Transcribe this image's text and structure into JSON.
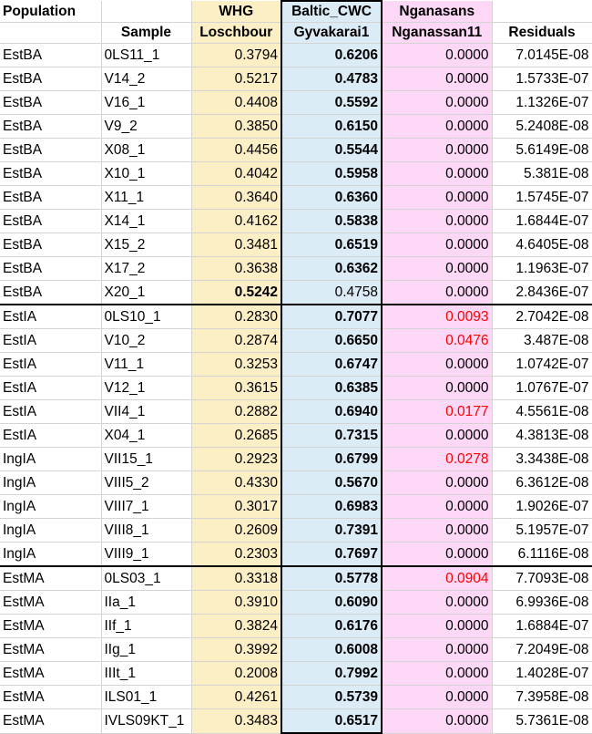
{
  "header": {
    "population": "Population",
    "sample": "Sample",
    "whg_line1": "WHG",
    "whg_line2": "Loschbour",
    "baltic_line1": "Baltic_CWC",
    "baltic_line2": "Gyvakarai1",
    "ngan_line1": "Nganasans",
    "ngan_line2": "Nganassan11",
    "residuals": "Residuals"
  },
  "rows": [
    {
      "pop": "EstBA",
      "sample": "0LS11_1",
      "whg": "0.3794",
      "baltic": "0.6206",
      "ngan": "0.0000",
      "res": "7.0145E-08",
      "bold": "baltic",
      "red": false,
      "group_start": false
    },
    {
      "pop": "EstBA",
      "sample": "V14_2",
      "whg": "0.5217",
      "baltic": "0.4783",
      "ngan": "0.0000",
      "res": "1.5733E-07",
      "bold": "baltic",
      "red": false,
      "group_start": false
    },
    {
      "pop": "EstBA",
      "sample": "V16_1",
      "whg": "0.4408",
      "baltic": "0.5592",
      "ngan": "0.0000",
      "res": "1.1326E-07",
      "bold": "baltic",
      "red": false,
      "group_start": false
    },
    {
      "pop": "EstBA",
      "sample": "V9_2",
      "whg": "0.3850",
      "baltic": "0.6150",
      "ngan": "0.0000",
      "res": "5.2408E-08",
      "bold": "baltic",
      "red": false,
      "group_start": false
    },
    {
      "pop": "EstBA",
      "sample": "X08_1",
      "whg": "0.4456",
      "baltic": "0.5544",
      "ngan": "0.0000",
      "res": "5.6149E-08",
      "bold": "baltic",
      "red": false,
      "group_start": false
    },
    {
      "pop": "EstBA",
      "sample": "X10_1",
      "whg": "0.4042",
      "baltic": "0.5958",
      "ngan": "0.0000",
      "res": "5.381E-08",
      "bold": "baltic",
      "red": false,
      "group_start": false
    },
    {
      "pop": "EstBA",
      "sample": "X11_1",
      "whg": "0.3640",
      "baltic": "0.6360",
      "ngan": "0.0000",
      "res": "1.5745E-07",
      "bold": "baltic",
      "red": false,
      "group_start": false
    },
    {
      "pop": "EstBA",
      "sample": "X14_1",
      "whg": "0.4162",
      "baltic": "0.5838",
      "ngan": "0.0000",
      "res": "1.6844E-07",
      "bold": "baltic",
      "red": false,
      "group_start": false
    },
    {
      "pop": "EstBA",
      "sample": "X15_2",
      "whg": "0.3481",
      "baltic": "0.6519",
      "ngan": "0.0000",
      "res": "4.6405E-08",
      "bold": "baltic",
      "red": false,
      "group_start": false
    },
    {
      "pop": "EstBA",
      "sample": "X17_2",
      "whg": "0.3638",
      "baltic": "0.6362",
      "ngan": "0.0000",
      "res": "1.1963E-07",
      "bold": "baltic",
      "red": false,
      "group_start": false
    },
    {
      "pop": "EstBA",
      "sample": "X20_1",
      "whg": "0.5242",
      "baltic": "0.4758",
      "ngan": "0.0000",
      "res": "2.8436E-07",
      "bold": "whg",
      "red": false,
      "group_start": false
    },
    {
      "pop": "EstIA",
      "sample": "0LS10_1",
      "whg": "0.2830",
      "baltic": "0.7077",
      "ngan": "0.0093",
      "res": "2.7042E-08",
      "bold": "baltic",
      "red": true,
      "group_start": true
    },
    {
      "pop": "EstIA",
      "sample": "V10_2",
      "whg": "0.2874",
      "baltic": "0.6650",
      "ngan": "0.0476",
      "res": "3.487E-08",
      "bold": "baltic",
      "red": true,
      "group_start": false
    },
    {
      "pop": "EstIA",
      "sample": "V11_1",
      "whg": "0.3253",
      "baltic": "0.6747",
      "ngan": "0.0000",
      "res": "1.0742E-07",
      "bold": "baltic",
      "red": false,
      "group_start": false
    },
    {
      "pop": "EstIA",
      "sample": "V12_1",
      "whg": "0.3615",
      "baltic": "0.6385",
      "ngan": "0.0000",
      "res": "1.0767E-07",
      "bold": "baltic",
      "red": false,
      "group_start": false
    },
    {
      "pop": "EstIA",
      "sample": "VII4_1",
      "whg": "0.2882",
      "baltic": "0.6940",
      "ngan": "0.0177",
      "res": "4.5561E-08",
      "bold": "baltic",
      "red": true,
      "group_start": false
    },
    {
      "pop": "EstIA",
      "sample": "X04_1",
      "whg": "0.2685",
      "baltic": "0.7315",
      "ngan": "0.0000",
      "res": "4.3813E-08",
      "bold": "baltic",
      "red": false,
      "group_start": false
    },
    {
      "pop": "IngIA",
      "sample": "VII15_1",
      "whg": "0.2923",
      "baltic": "0.6799",
      "ngan": "0.0278",
      "res": "3.3438E-08",
      "bold": "baltic",
      "red": true,
      "group_start": false
    },
    {
      "pop": "IngIA",
      "sample": "VIII5_2",
      "whg": "0.4330",
      "baltic": "0.5670",
      "ngan": "0.0000",
      "res": "6.3612E-08",
      "bold": "baltic",
      "red": false,
      "group_start": false
    },
    {
      "pop": "IngIA",
      "sample": "VIII7_1",
      "whg": "0.3017",
      "baltic": "0.6983",
      "ngan": "0.0000",
      "res": "1.9026E-07",
      "bold": "baltic",
      "red": false,
      "group_start": false
    },
    {
      "pop": "IngIA",
      "sample": "VIII8_1",
      "whg": "0.2609",
      "baltic": "0.7391",
      "ngan": "0.0000",
      "res": "5.1957E-07",
      "bold": "baltic",
      "red": false,
      "group_start": false
    },
    {
      "pop": "IngIA",
      "sample": "VIII9_1",
      "whg": "0.2303",
      "baltic": "0.7697",
      "ngan": "0.0000",
      "res": "6.1116E-08",
      "bold": "baltic",
      "red": false,
      "group_start": false
    },
    {
      "pop": "EstMA",
      "sample": "0LS03_1",
      "whg": "0.3318",
      "baltic": "0.5778",
      "ngan": "0.0904",
      "res": "7.7093E-08",
      "bold": "baltic",
      "red": true,
      "group_start": true
    },
    {
      "pop": "EstMA",
      "sample": "IIa_1",
      "whg": "0.3910",
      "baltic": "0.6090",
      "ngan": "0.0000",
      "res": "6.9936E-08",
      "bold": "baltic",
      "red": false,
      "group_start": false
    },
    {
      "pop": "EstMA",
      "sample": "IIf_1",
      "whg": "0.3824",
      "baltic": "0.6176",
      "ngan": "0.0000",
      "res": "1.6884E-07",
      "bold": "baltic",
      "red": false,
      "group_start": false
    },
    {
      "pop": "EstMA",
      "sample": "IIg_1",
      "whg": "0.3992",
      "baltic": "0.6008",
      "ngan": "0.0000",
      "res": "7.2049E-08",
      "bold": "baltic",
      "red": false,
      "group_start": false
    },
    {
      "pop": "EstMA",
      "sample": "IIIt_1",
      "whg": "0.2008",
      "baltic": "0.7992",
      "ngan": "0.0000",
      "res": "1.4028E-07",
      "bold": "baltic",
      "red": false,
      "group_start": false
    },
    {
      "pop": "EstMA",
      "sample": "ILS01_1",
      "whg": "0.4261",
      "baltic": "0.5739",
      "ngan": "0.0000",
      "res": "7.3958E-08",
      "bold": "baltic",
      "red": false,
      "group_start": false
    },
    {
      "pop": "EstMA",
      "sample": "IVLS09KT_1",
      "whg": "0.3483",
      "baltic": "0.6517",
      "ngan": "0.0000",
      "res": "5.7361E-08",
      "bold": "baltic",
      "red": false,
      "group_start": false
    }
  ]
}
